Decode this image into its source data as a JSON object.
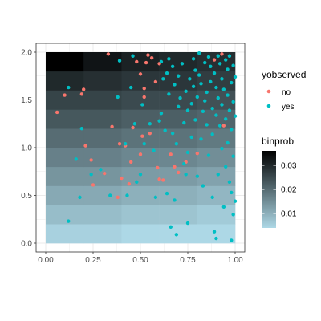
{
  "chart_data": {
    "type": "heatmap",
    "x_range": [
      0,
      1
    ],
    "y_range": [
      0,
      2
    ],
    "x_ticks": [
      "0.00",
      "0.25",
      "0.50",
      "0.75",
      "1.00"
    ],
    "x_tick_values": [
      0,
      0.25,
      0.5,
      0.75,
      1.0
    ],
    "y_ticks": [
      "0.0",
      "0.5",
      "1.0",
      "1.5",
      "2.0"
    ],
    "y_tick_values": [
      0,
      0.5,
      1.0,
      1.5,
      2.0
    ],
    "grid": true,
    "heatmap": {
      "x_bins": [
        0.0,
        0.2,
        0.4,
        0.6,
        0.8,
        1.0
      ],
      "y_bins": [
        0.0,
        0.2,
        0.4,
        0.6,
        0.8,
        1.0,
        1.2,
        1.4,
        1.6,
        1.8,
        2.0
      ],
      "values": [
        [
          0.005,
          0.005,
          0.004,
          0.004,
          0.004
        ],
        [
          0.008,
          0.008,
          0.007,
          0.007,
          0.006
        ],
        [
          0.011,
          0.011,
          0.01,
          0.01,
          0.009
        ],
        [
          0.014,
          0.014,
          0.013,
          0.013,
          0.012
        ],
        [
          0.017,
          0.017,
          0.016,
          0.016,
          0.015
        ],
        [
          0.02,
          0.02,
          0.019,
          0.019,
          0.018
        ],
        [
          0.023,
          0.023,
          0.022,
          0.022,
          0.021
        ],
        [
          0.026,
          0.026,
          0.025,
          0.025,
          0.024
        ],
        [
          0.03,
          0.029,
          0.028,
          0.028,
          0.027
        ],
        [
          0.036,
          0.033,
          0.031,
          0.03,
          0.029
        ]
      ],
      "fill_legend_title": "binprob",
      "fill_legend_ticks": [
        "0.01",
        "0.02",
        "0.03"
      ],
      "fill_legend_tick_values": [
        0.01,
        0.02,
        0.03
      ],
      "fill_range": [
        0.004,
        0.036
      ],
      "low_color": "#add8e6",
      "high_color": "#000000"
    },
    "point_series": [
      {
        "name": "no",
        "color": "#F8766D",
        "points": [
          [
            0.06,
            1.37
          ],
          [
            0.1,
            1.55
          ],
          [
            0.2,
            1.61
          ],
          [
            0.19,
            1.56
          ],
          [
            0.21,
            1.02
          ],
          [
            0.24,
            0.87
          ],
          [
            0.25,
            0.61
          ],
          [
            0.31,
            0.73
          ],
          [
            0.33,
            1.98
          ],
          [
            0.38,
            0.48
          ],
          [
            0.39,
            1.04
          ],
          [
            0.4,
            0.68
          ],
          [
            0.42,
            1.02
          ],
          [
            0.44,
            0.62
          ],
          [
            0.46,
            1.21
          ],
          [
            0.48,
            1.9
          ],
          [
            0.5,
            1.77
          ],
          [
            0.51,
            1.12
          ],
          [
            0.52,
            1.53
          ],
          [
            0.52,
            1.62
          ],
          [
            0.53,
            1.89
          ],
          [
            0.54,
            1.97
          ],
          [
            0.55,
            1.15
          ],
          [
            0.56,
            1.94
          ],
          [
            0.58,
            1.69
          ],
          [
            0.59,
            0.79
          ],
          [
            0.6,
            0.67
          ],
          [
            0.6,
            1.88
          ],
          [
            0.62,
            0.66
          ],
          [
            0.66,
            0.93
          ],
          [
            0.68,
            0.8
          ],
          [
            0.7,
            0.74
          ],
          [
            0.74,
            0.85
          ],
          [
            0.8,
            0.94
          ],
          [
            0.89,
            1.92
          ],
          [
            0.93,
            1.98
          ],
          [
            0.94,
            1.23
          ],
          [
            0.5,
            0.93
          ],
          [
            0.45,
            0.85
          ],
          [
            0.35,
            1.22
          ]
        ]
      },
      {
        "name": "yes",
        "color": "#00BFC4",
        "points": [
          [
            0.12,
            1.63
          ],
          [
            0.19,
            1.2
          ],
          [
            0.16,
            0.88
          ],
          [
            0.12,
            0.23
          ],
          [
            0.18,
            0.48
          ],
          [
            0.24,
            0.72
          ],
          [
            0.29,
            0.77
          ],
          [
            0.34,
            0.5
          ],
          [
            0.38,
            1.53
          ],
          [
            0.39,
            1.91
          ],
          [
            0.42,
            1.04
          ],
          [
            0.43,
            0.5
          ],
          [
            0.45,
            1.63
          ],
          [
            0.46,
            1.96
          ],
          [
            0.47,
            1.25
          ],
          [
            0.48,
            0.64
          ],
          [
            0.5,
            0.72
          ],
          [
            0.51,
            1.45
          ],
          [
            0.52,
            1.04
          ],
          [
            0.55,
            1.25
          ],
          [
            0.57,
            0.97
          ],
          [
            0.58,
            0.48
          ],
          [
            0.6,
            1.28
          ],
          [
            0.61,
            1.36
          ],
          [
            0.61,
            1.9
          ],
          [
            0.62,
            1.72
          ],
          [
            0.63,
            1.18
          ],
          [
            0.64,
            0.52
          ],
          [
            0.64,
            1.78
          ],
          [
            0.65,
            1.56
          ],
          [
            0.65,
            1.93
          ],
          [
            0.66,
            0.17
          ],
          [
            0.67,
            1.15
          ],
          [
            0.67,
            1.85
          ],
          [
            0.68,
            0.45
          ],
          [
            0.68,
            1.66
          ],
          [
            0.69,
            1.04
          ],
          [
            0.69,
            0.09
          ],
          [
            0.7,
            1.75
          ],
          [
            0.7,
            1.43
          ],
          [
            0.71,
            1.52
          ],
          [
            0.72,
            1.88
          ],
          [
            0.73,
            0.83
          ],
          [
            0.73,
            1.26
          ],
          [
            0.74,
            0.72
          ],
          [
            0.74,
            1.59
          ],
          [
            0.75,
            1.39
          ],
          [
            0.75,
            0.95
          ],
          [
            0.75,
            0.21
          ],
          [
            0.76,
            1.72
          ],
          [
            0.77,
            1.46
          ],
          [
            0.77,
            1.11
          ],
          [
            0.78,
            1.64
          ],
          [
            0.78,
            1.93
          ],
          [
            0.79,
            1.29
          ],
          [
            0.79,
            1.81
          ],
          [
            0.8,
            0.7
          ],
          [
            0.8,
            1.53
          ],
          [
            0.81,
            1.99
          ],
          [
            0.81,
            1.76
          ],
          [
            0.82,
            1.67
          ],
          [
            0.82,
            1.09
          ],
          [
            0.83,
            1.38
          ],
          [
            0.83,
            0.6
          ],
          [
            0.84,
            1.89
          ],
          [
            0.84,
            1.49
          ],
          [
            0.85,
            1.24
          ],
          [
            0.85,
            1.58
          ],
          [
            0.86,
            1.95
          ],
          [
            0.86,
            0.92
          ],
          [
            0.87,
            1.69
          ],
          [
            0.87,
            1.85
          ],
          [
            0.88,
            1.41
          ],
          [
            0.88,
            1.14
          ],
          [
            0.88,
            0.48
          ],
          [
            0.89,
            0.12
          ],
          [
            0.89,
            1.78
          ],
          [
            0.9,
            1.63
          ],
          [
            0.9,
            1.34
          ],
          [
            0.9,
            0.05
          ],
          [
            0.91,
            1.52
          ],
          [
            0.91,
            1.96
          ],
          [
            0.91,
            0.72
          ],
          [
            0.92,
            1.88
          ],
          [
            0.92,
            1.23
          ],
          [
            0.93,
            1.72
          ],
          [
            0.93,
            1.45
          ],
          [
            0.93,
            0.99
          ],
          [
            0.94,
            0.38
          ],
          [
            0.94,
            1.61
          ],
          [
            0.95,
            1.92
          ],
          [
            0.95,
            1.3
          ],
          [
            0.95,
            0.8
          ],
          [
            0.96,
            1.82
          ],
          [
            0.96,
            1.55
          ],
          [
            0.96,
            1.05
          ],
          [
            0.97,
            1.96
          ],
          [
            0.97,
            1.39
          ],
          [
            0.97,
            0.64
          ],
          [
            0.98,
            0.03
          ],
          [
            0.98,
            1.68
          ],
          [
            0.98,
            1.19
          ],
          [
            0.98,
            0.53
          ],
          [
            0.99,
            1.86
          ],
          [
            0.99,
            1.48
          ],
          [
            0.99,
            0.91
          ],
          [
            0.99,
            0.3
          ],
          [
            1.0,
            1.74
          ],
          [
            1.0,
            1.33
          ],
          [
            1.0,
            0.44
          ]
        ]
      }
    ],
    "color_legend_title": "yobserved",
    "color_legend_entries": [
      "no",
      "yes"
    ]
  }
}
